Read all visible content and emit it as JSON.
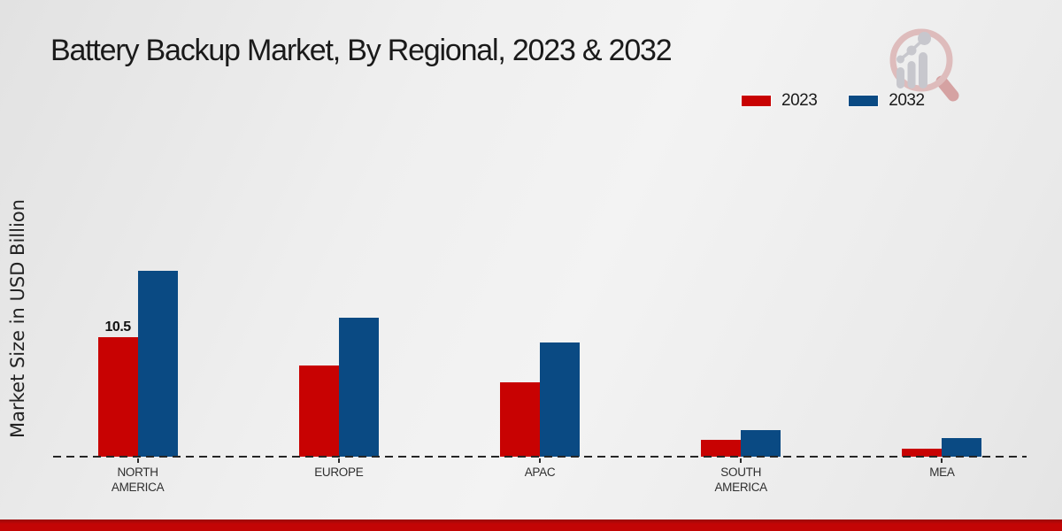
{
  "page": {
    "title": "Battery Backup Market, By Regional, 2023 & 2032"
  },
  "colors": {
    "series_2023": "#c80202",
    "series_2032": "#0a4a83",
    "background": "#ededed",
    "baseline": "#262626",
    "footer_red": "#c30505",
    "text": "#1a1a1a"
  },
  "legend": {
    "position": "top-right",
    "items": [
      {
        "label": "2023",
        "color": "#c80202"
      },
      {
        "label": "2032",
        "color": "#0a4a83"
      }
    ]
  },
  "logo": {
    "name": "magnifier-bar-chart-watermark"
  },
  "chart_data": {
    "type": "bar",
    "title": "Battery Backup Market, By Regional, 2023 & 2032",
    "xlabel": "",
    "ylabel": "Market Size in USD Billion",
    "categories": [
      "NORTH AMERICA",
      "EUROPE",
      "APAC",
      "SOUTH AMERICA",
      "MEA"
    ],
    "series": [
      {
        "name": "2023",
        "color": "#c80202",
        "values": [
          10.5,
          8.0,
          6.5,
          1.5,
          0.7
        ],
        "data_labels": [
          "10.5",
          "",
          "",
          "",
          ""
        ]
      },
      {
        "name": "2032",
        "color": "#0a4a83",
        "values": [
          16.3,
          12.2,
          10.0,
          2.3,
          1.6
        ],
        "data_labels": [
          "",
          "",
          "",
          "",
          ""
        ]
      }
    ],
    "ylim": [
      0,
      18
    ],
    "grid": false,
    "y_axis_ticks_visible": false,
    "baseline_style": "dashed",
    "legend_position": "top-right"
  }
}
